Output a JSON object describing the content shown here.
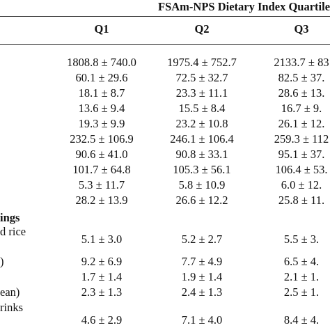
{
  "table": {
    "group_header": "FSAm-NPS Dietary Index Quartiles",
    "columns": [
      "Q1",
      "Q2",
      "Q3"
    ],
    "rows": [
      {
        "label": "",
        "values": [
          "1808.8 ± 740.0",
          "1975.4 ± 752.7",
          "2133.7 ± 83"
        ]
      },
      {
        "label": "",
        "values": [
          "60.1 ± 29.6",
          "72.5 ± 32.7",
          "82.5 ± 37."
        ]
      },
      {
        "label": "",
        "values": [
          "18.1 ± 8.7",
          "23.3 ± 11.1",
          "28.6 ± 13."
        ]
      },
      {
        "label": "",
        "values": [
          "13.6 ± 9.4",
          "15.5 ± 8.4",
          "16.7 ± 9."
        ]
      },
      {
        "label": "",
        "values": [
          "19.3 ± 9.9",
          "23.2 ± 10.8",
          "26.1 ± 12."
        ]
      },
      {
        "label": "",
        "values": [
          "232.5 ± 106.9",
          "246.1 ± 106.4",
          "259.3 ± 112"
        ]
      },
      {
        "label": "",
        "values": [
          "90.6 ± 41.0",
          "90.8 ± 33.1",
          "95.1 ± 37."
        ]
      },
      {
        "label": "",
        "values": [
          "101.7 ± 64.8",
          "105.3 ± 56.1",
          "106.4 ± 53."
        ]
      },
      {
        "label": "",
        "values": [
          "5.3 ± 11.7",
          "5.8 ± 10.9",
          "6.0 ± 12."
        ]
      },
      {
        "label": "",
        "values": [
          "28.2 ± 13.9",
          "26.6 ± 12.2",
          "25.8 ± 11."
        ]
      },
      {
        "label": "ings",
        "values": [
          "",
          "",
          ""
        ]
      },
      {
        "label": "d rice",
        "values": [
          "",
          "",
          ""
        ]
      },
      {
        "label": "",
        "values": [
          "5.1 ± 3.0",
          "5.2 ± 2.7",
          "5.5 ± 3."
        ]
      },
      {
        "label": ")",
        "values": [
          "9.2 ± 6.9",
          "7.7 ± 4.9",
          "6.5 ± 4."
        ]
      },
      {
        "label": "",
        "values": [
          "1.7 ± 1.4",
          "1.9 ± 1.4",
          "2.1 ± 1."
        ]
      },
      {
        "label": "ean)",
        "values": [
          "2.3 ± 1.3",
          "2.4 ± 1.3",
          "2.5 ± 1."
        ]
      },
      {
        "label": "rinks",
        "values": [
          "",
          "",
          ""
        ]
      },
      {
        "label": "",
        "values": [
          "4.6 ± 2.9",
          "7.1 ± 4.0",
          "8.4 ± 4."
        ]
      }
    ]
  }
}
